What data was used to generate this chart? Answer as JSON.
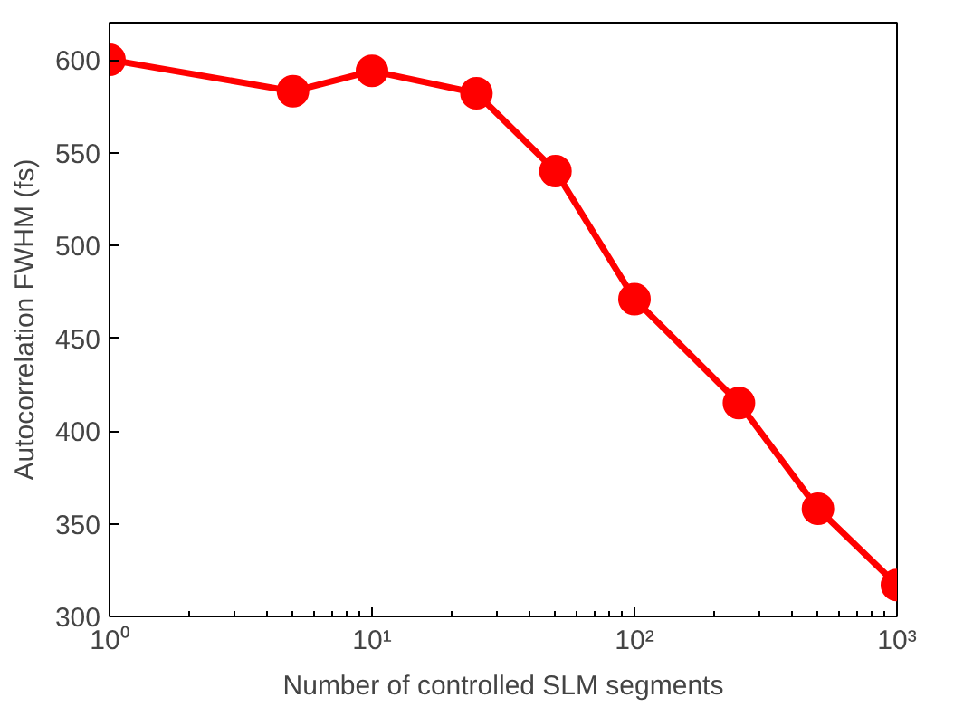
{
  "chart_data": {
    "type": "line",
    "xlabel": "Number of controlled SLM segments",
    "ylabel": "Autocorrelation FWHM (fs)",
    "x": [
      1,
      5,
      10,
      25,
      50,
      100,
      250,
      500,
      1000
    ],
    "series": [
      {
        "color": "#ff0000",
        "values": [
          600,
          583,
          594,
          582,
          540,
          471,
          415,
          358,
          317
        ]
      }
    ],
    "log": "x",
    "xlim": [
      1,
      1000
    ],
    "ylim": [
      300,
      620
    ],
    "xticks": [
      {
        "value": 1,
        "label": "10⁰"
      },
      {
        "value": 10,
        "label": "10¹"
      },
      {
        "value": 100,
        "label": "10²"
      },
      {
        "value": 1000,
        "label": "10³"
      }
    ],
    "yticks": [
      300,
      350,
      400,
      450,
      500,
      550,
      600
    ],
    "grid": false,
    "marker": "circle",
    "line_style": "solid"
  }
}
